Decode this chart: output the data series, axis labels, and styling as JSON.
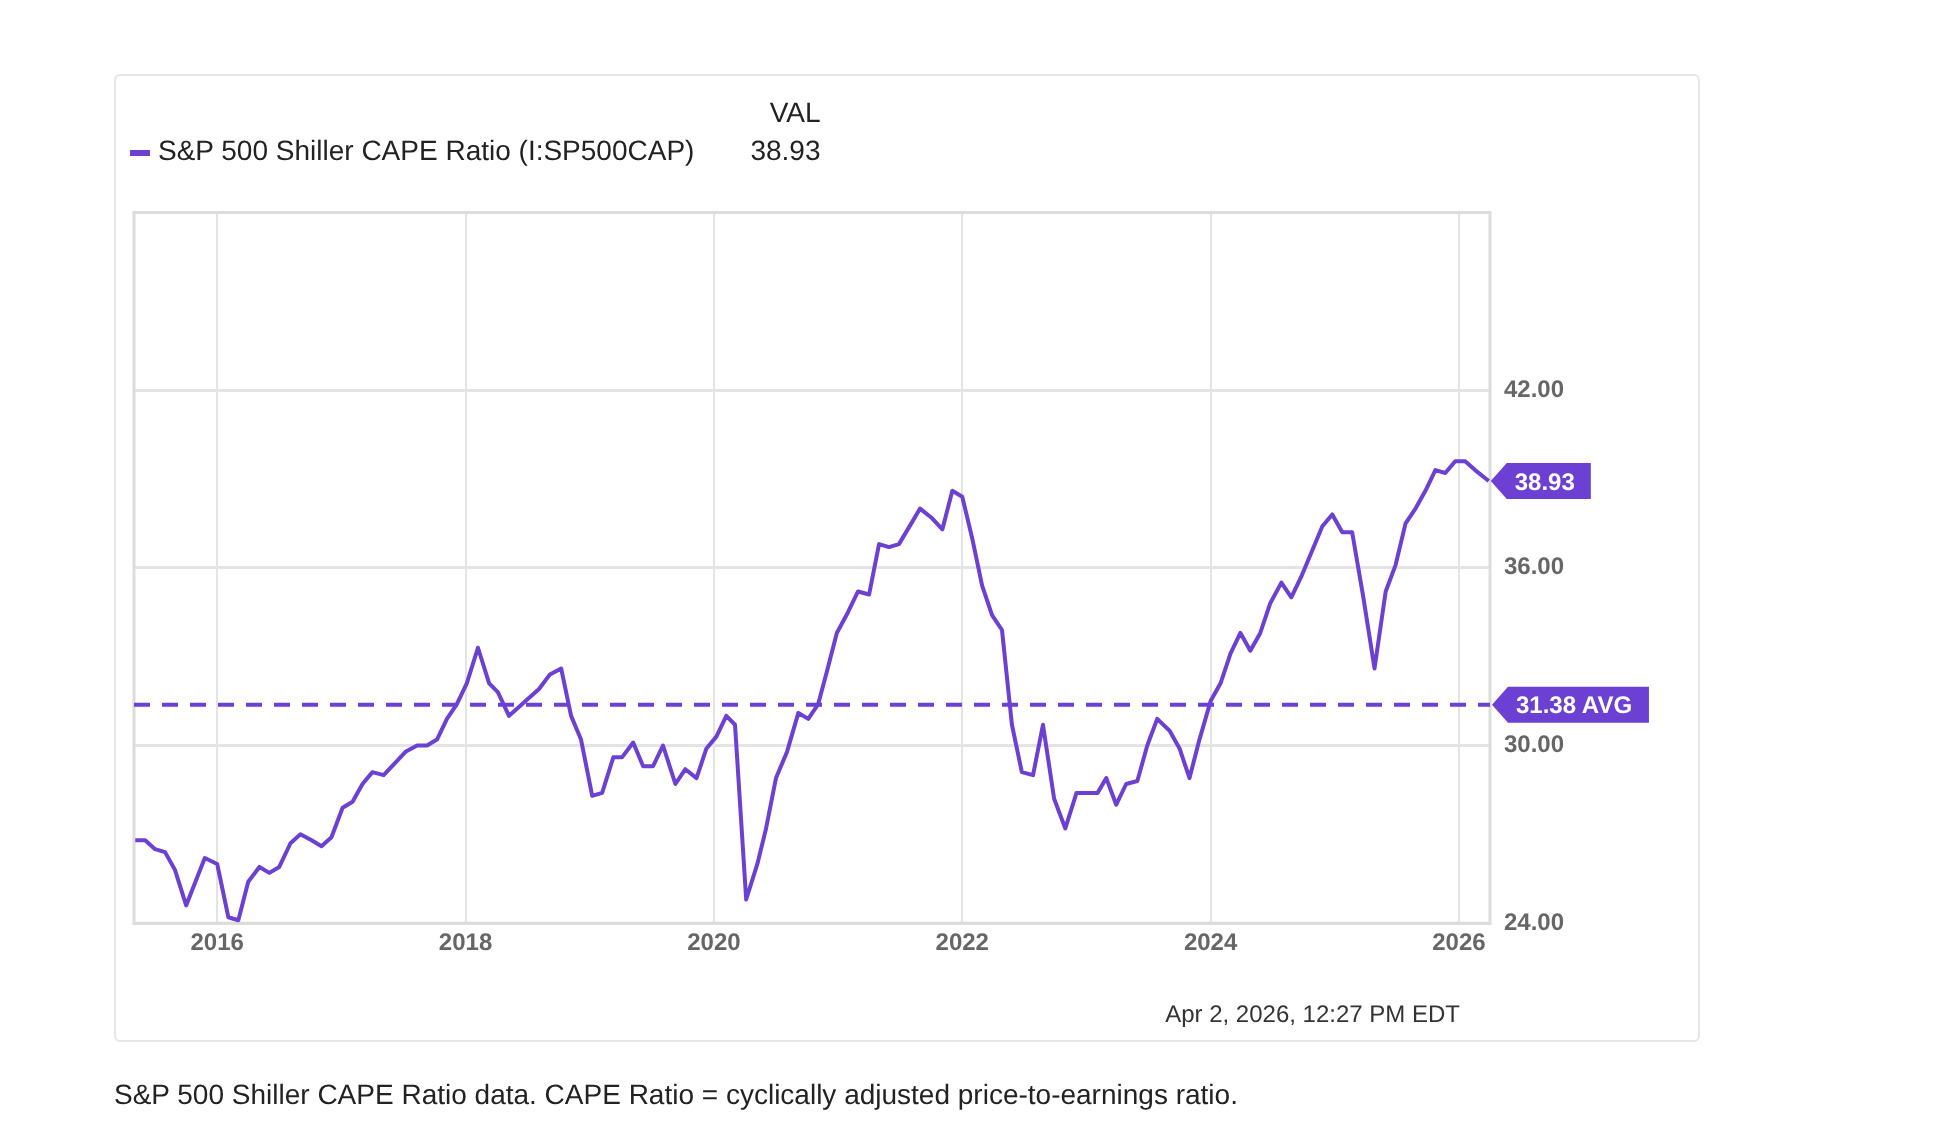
{
  "chart_data": {
    "type": "line",
    "legend_title": "VAL",
    "legend": "top left",
    "grid": true,
    "marker": "none",
    "line_style": "solid",
    "x": [
      2015.34,
      2015.42,
      2015.5,
      2015.58,
      2015.66,
      2015.75,
      2015.9,
      2016.0,
      2016.09,
      2016.17,
      2016.25,
      2016.34,
      2016.42,
      2016.5,
      2016.59,
      2016.67,
      2016.76,
      2016.84,
      2016.92,
      2017.01,
      2017.09,
      2017.17,
      2017.25,
      2017.34,
      2017.43,
      2017.52,
      2017.61,
      2017.69,
      2017.77,
      2017.85,
      2017.93,
      2018.01,
      2018.1,
      2018.19,
      2018.26,
      2018.35,
      2018.43,
      2018.51,
      2018.59,
      2018.68,
      2018.77,
      2018.85,
      2018.93,
      2019.02,
      2019.1,
      2019.19,
      2019.26,
      2019.35,
      2019.43,
      2019.51,
      2019.59,
      2019.69,
      2019.77,
      2019.86,
      2019.94,
      2020.02,
      2020.1,
      2020.17,
      2020.26,
      2020.35,
      2020.42,
      2020.5,
      2020.59,
      2020.68,
      2020.76,
      2020.84,
      2020.91,
      2020.99,
      2021.08,
      2021.16,
      2021.25,
      2021.33,
      2021.41,
      2021.49,
      2021.59,
      2021.66,
      2021.75,
      2021.84,
      2021.92,
      2022.0,
      2022.08,
      2022.16,
      2022.24,
      2022.32,
      2022.4,
      2022.48,
      2022.57,
      2022.65,
      2022.74,
      2022.83,
      2022.92,
      2023.0,
      2023.09,
      2023.16,
      2023.24,
      2023.32,
      2023.41,
      2023.49,
      2023.57,
      2023.67,
      2023.75,
      2023.83,
      2023.91,
      2024.0,
      2024.08,
      2024.16,
      2024.24,
      2024.32,
      2024.4,
      2024.48,
      2024.57,
      2024.65,
      2024.73,
      2024.82,
      2024.9,
      2024.98,
      2025.06,
      2025.14,
      2025.23,
      2025.32,
      2025.41,
      2025.49,
      2025.57,
      2025.65,
      2025.73,
      2025.81,
      2025.89,
      2025.97,
      2026.05,
      2026.13,
      2026.24
    ],
    "series": [
      {
        "name": "S&P 500 Shiller CAPE Ratio (I:SP500CAP)",
        "color": "#6b40d2",
        "values": [
          26.8,
          26.8,
          26.5,
          26.4,
          25.8,
          24.6,
          26.2,
          26.0,
          24.2,
          24.1,
          25.4,
          25.9,
          25.7,
          25.9,
          26.7,
          27.0,
          26.8,
          26.6,
          26.9,
          27.9,
          28.1,
          28.7,
          29.1,
          29.0,
          29.4,
          29.8,
          30.0,
          30.0,
          30.2,
          30.9,
          31.4,
          32.1,
          33.3,
          32.1,
          31.8,
          31.0,
          31.3,
          31.6,
          31.9,
          32.4,
          32.6,
          31.0,
          30.2,
          28.3,
          28.4,
          29.6,
          29.6,
          30.1,
          29.3,
          29.3,
          30.0,
          28.7,
          29.2,
          28.9,
          29.9,
          30.3,
          31.0,
          30.7,
          24.8,
          26.0,
          27.2,
          28.9,
          29.8,
          31.1,
          30.9,
          31.4,
          32.5,
          33.8,
          34.5,
          35.2,
          35.1,
          36.8,
          36.7,
          36.8,
          37.5,
          38.0,
          37.7,
          37.3,
          38.6,
          38.4,
          37.0,
          35.4,
          34.4,
          33.9,
          30.7,
          29.1,
          29.0,
          30.7,
          28.2,
          27.2,
          28.4,
          28.4,
          28.4,
          28.9,
          28.0,
          28.7,
          28.8,
          30.0,
          30.9,
          30.5,
          29.9,
          28.9,
          30.2,
          31.5,
          32.1,
          33.1,
          33.8,
          33.2,
          33.8,
          34.8,
          35.5,
          35.0,
          35.7,
          36.6,
          37.4,
          37.8,
          37.2,
          37.2,
          35.0,
          32.6,
          35.2,
          36.1,
          37.5,
          38.0,
          38.6,
          39.3,
          39.2,
          39.6,
          39.6,
          39.3,
          38.93
        ]
      }
    ],
    "xlim": [
      2015.33,
      2026.25
    ],
    "xticks": [
      2016,
      2018,
      2020,
      2022,
      2024,
      2026
    ],
    "ylim": [
      24,
      48
    ],
    "yticks": [
      {
        "value": 24,
        "label": "24.00"
      },
      {
        "value": 30,
        "label": "30.00"
      },
      {
        "value": 36,
        "label": "36.00"
      },
      {
        "value": 42,
        "label": "42.00"
      }
    ],
    "ref_lines": [
      {
        "axis": "y",
        "value": 31.38,
        "label": "31.38 AVG",
        "color": "#6b40d2",
        "line_style": "dashed"
      }
    ],
    "annotations": [
      {
        "text": "38.93",
        "x": 2026.24,
        "y": 38.93
      },
      "38.93",
      "Apr 2, 2026, 12:27 PM EDT",
      "S&P 500 Shiller CAPE Ratio data. CAPE Ratio = cyclically adjusted price-to-earnings ratio."
    ]
  }
}
